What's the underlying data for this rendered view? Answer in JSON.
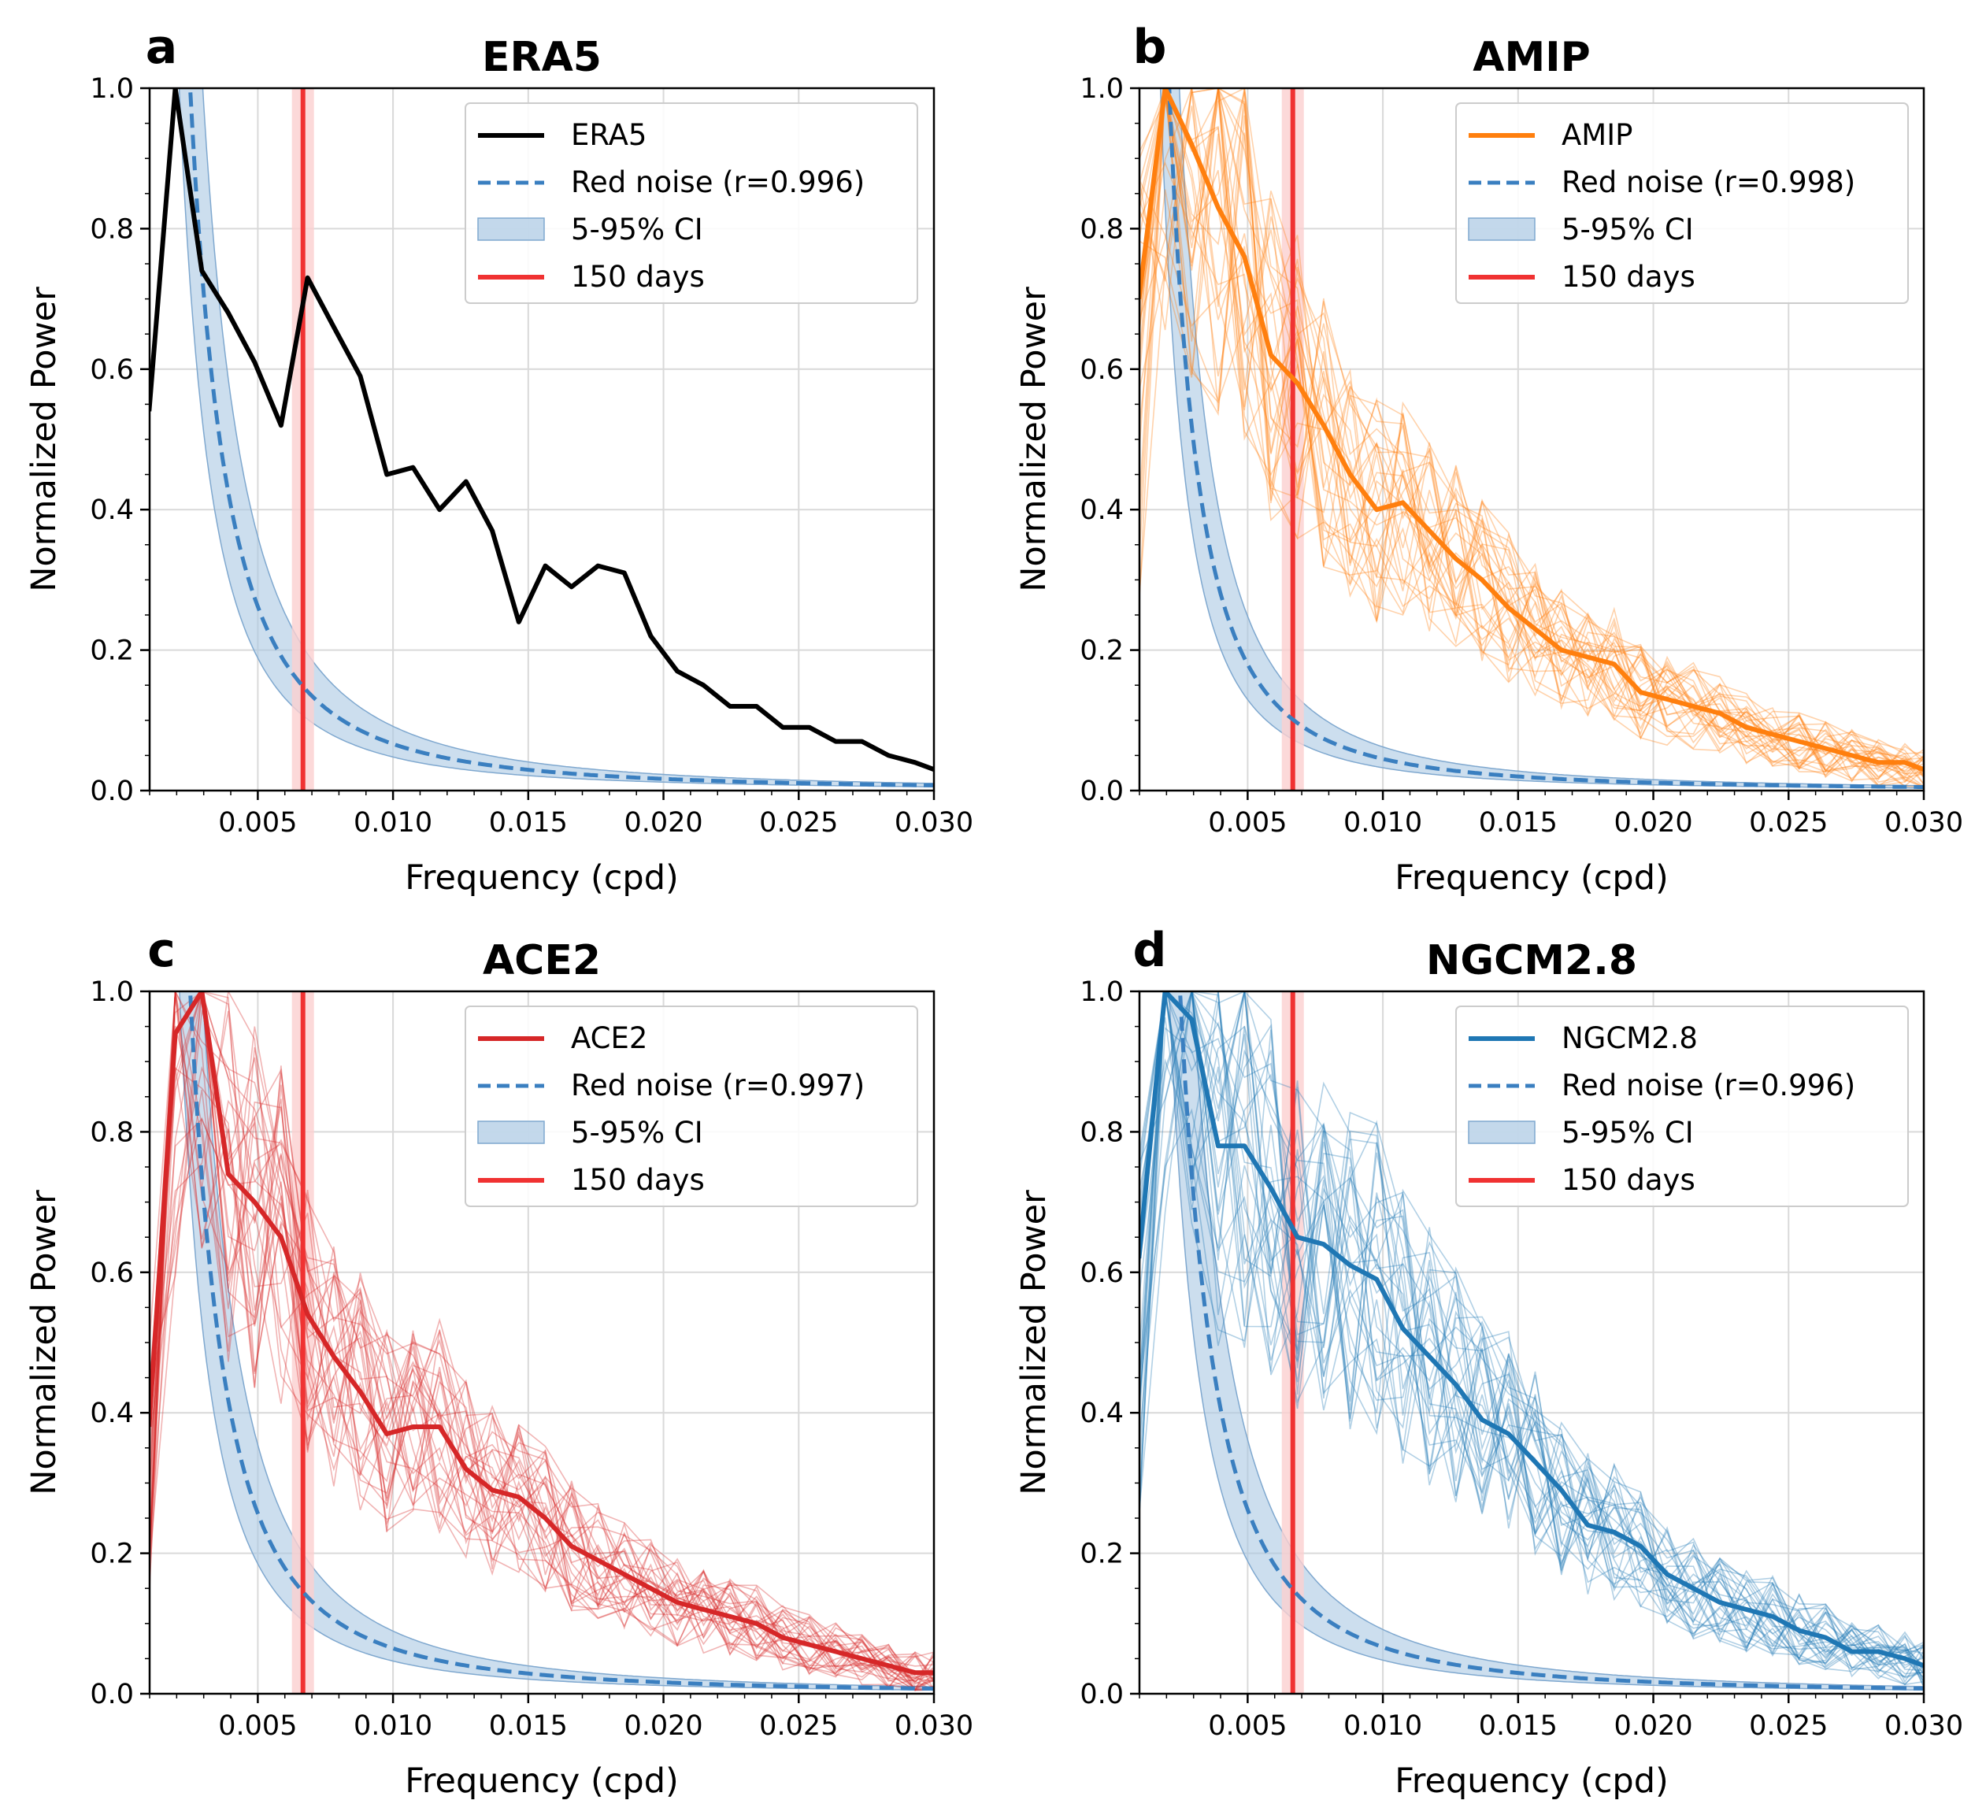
{
  "colors": {
    "era5": "#000000",
    "amip": "#ff7f0e",
    "ace2": "#d62728",
    "ngcm": "#1f77b4",
    "red_noise": "#3a7fc0",
    "ci_fill": "#aac8e2",
    "marker_150d": "#f03232",
    "marker_band": "#fbd0d0",
    "grid": "#d9d9d9"
  },
  "chart_data": [
    {
      "type": "line",
      "panel_letter": "a",
      "title": "ERA5",
      "xlabel": "Frequency (cpd)",
      "ylabel": "Normalized Power",
      "xlim": [
        0.001,
        0.03
      ],
      "ylim": [
        0.0,
        1.0
      ],
      "xticks": [
        "0.005",
        "0.010",
        "0.015",
        "0.020",
        "0.025",
        "0.030"
      ],
      "yticks": [
        "0.0",
        "0.2",
        "0.4",
        "0.6",
        "0.8",
        "1.0"
      ],
      "grid": true,
      "legend_position": "top-right",
      "marker_frequency": 0.00667,
      "red_noise_r": 0.996,
      "series": [
        {
          "name": "ERA5",
          "color": "#000000",
          "x": [
            0.00098,
            0.00195,
            0.00293,
            0.00391,
            0.00488,
            0.00586,
            0.00684,
            0.00781,
            0.00879,
            0.00977,
            0.01074,
            0.01172,
            0.0127,
            0.01367,
            0.01465,
            0.01563,
            0.0166,
            0.01758,
            0.01855,
            0.01953,
            0.02051,
            0.02148,
            0.02246,
            0.02344,
            0.02441,
            0.02539,
            0.02637,
            0.02734,
            0.02832,
            0.0293,
            0.03
          ],
          "values": [
            0.54,
            1.0,
            0.74,
            0.68,
            0.61,
            0.52,
            0.73,
            0.66,
            0.59,
            0.45,
            0.46,
            0.4,
            0.44,
            0.37,
            0.24,
            0.32,
            0.29,
            0.32,
            0.31,
            0.22,
            0.17,
            0.15,
            0.12,
            0.12,
            0.09,
            0.09,
            0.07,
            0.07,
            0.05,
            0.04,
            0.03
          ]
        }
      ],
      "legend": [
        "ERA5",
        "Red noise (r=0.996)",
        "5-95% CI",
        "150 days"
      ]
    },
    {
      "type": "line",
      "panel_letter": "b",
      "title": "AMIP",
      "xlabel": "Frequency (cpd)",
      "ylabel": "Normalized Power",
      "xlim": [
        0.001,
        0.03
      ],
      "ylim": [
        0.0,
        1.0
      ],
      "xticks": [
        "0.005",
        "0.010",
        "0.015",
        "0.020",
        "0.025",
        "0.030"
      ],
      "yticks": [
        "0.0",
        "0.2",
        "0.4",
        "0.6",
        "0.8",
        "1.0"
      ],
      "grid": true,
      "legend_position": "top-right",
      "marker_frequency": 0.00667,
      "red_noise_r": 0.998,
      "ensemble_members": 30,
      "series": [
        {
          "name": "AMIP",
          "color": "#ff7f0e",
          "x": [
            0.00098,
            0.00195,
            0.00293,
            0.00391,
            0.00488,
            0.00586,
            0.00684,
            0.00781,
            0.00879,
            0.00977,
            0.01074,
            0.01172,
            0.0127,
            0.01367,
            0.01465,
            0.01563,
            0.0166,
            0.01758,
            0.01855,
            0.01953,
            0.02051,
            0.02148,
            0.02246,
            0.02344,
            0.02441,
            0.02539,
            0.02637,
            0.02734,
            0.02832,
            0.0293,
            0.03
          ],
          "values": [
            0.7,
            1.0,
            0.92,
            0.83,
            0.76,
            0.62,
            0.58,
            0.52,
            0.45,
            0.4,
            0.41,
            0.37,
            0.33,
            0.3,
            0.26,
            0.23,
            0.2,
            0.19,
            0.18,
            0.14,
            0.13,
            0.12,
            0.11,
            0.09,
            0.08,
            0.07,
            0.06,
            0.05,
            0.04,
            0.04,
            0.03
          ]
        }
      ],
      "legend": [
        "AMIP",
        "Red noise (r=0.998)",
        "5-95% CI",
        "150 days"
      ]
    },
    {
      "type": "line",
      "panel_letter": "c",
      "title": "ACE2",
      "xlabel": "Frequency (cpd)",
      "ylabel": "Normalized Power",
      "xlim": [
        0.001,
        0.03
      ],
      "ylim": [
        0.0,
        1.0
      ],
      "xticks": [
        "0.005",
        "0.010",
        "0.015",
        "0.020",
        "0.025",
        "0.030"
      ],
      "yticks": [
        "0.0",
        "0.2",
        "0.4",
        "0.6",
        "0.8",
        "1.0"
      ],
      "grid": true,
      "legend_position": "top-right",
      "marker_frequency": 0.00667,
      "red_noise_r": 0.997,
      "ensemble_members": 30,
      "series": [
        {
          "name": "ACE2",
          "color": "#d62728",
          "x": [
            0.00098,
            0.00195,
            0.00293,
            0.00391,
            0.00488,
            0.00586,
            0.00684,
            0.00781,
            0.00879,
            0.00977,
            0.01074,
            0.01172,
            0.0127,
            0.01367,
            0.01465,
            0.01563,
            0.0166,
            0.01758,
            0.01855,
            0.01953,
            0.02051,
            0.02148,
            0.02246,
            0.02344,
            0.02441,
            0.02539,
            0.02637,
            0.02734,
            0.02832,
            0.0293,
            0.03
          ],
          "values": [
            0.38,
            0.94,
            1.0,
            0.74,
            0.7,
            0.65,
            0.54,
            0.48,
            0.43,
            0.37,
            0.38,
            0.38,
            0.32,
            0.29,
            0.28,
            0.25,
            0.21,
            0.19,
            0.17,
            0.15,
            0.13,
            0.12,
            0.11,
            0.1,
            0.08,
            0.07,
            0.06,
            0.05,
            0.04,
            0.03,
            0.03
          ]
        }
      ],
      "legend": [
        "ACE2",
        "Red noise (r=0.997)",
        "5-95% CI",
        "150 days"
      ]
    },
    {
      "type": "line",
      "panel_letter": "d",
      "title": "NGCM2.8",
      "xlabel": "Frequency (cpd)",
      "ylabel": "Normalized Power",
      "xlim": [
        0.001,
        0.03
      ],
      "ylim": [
        0.0,
        1.0
      ],
      "xticks": [
        "0.005",
        "0.010",
        "0.015",
        "0.020",
        "0.025",
        "0.030"
      ],
      "yticks": [
        "0.0",
        "0.2",
        "0.4",
        "0.6",
        "0.8",
        "1.0"
      ],
      "grid": true,
      "legend_position": "top-right",
      "marker_frequency": 0.00667,
      "red_noise_r": 0.996,
      "ensemble_members": 30,
      "series": [
        {
          "name": "NGCM2.8",
          "color": "#1f77b4",
          "x": [
            0.00098,
            0.00195,
            0.00293,
            0.00391,
            0.00488,
            0.00586,
            0.00684,
            0.00781,
            0.00879,
            0.00977,
            0.01074,
            0.01172,
            0.0127,
            0.01367,
            0.01465,
            0.01563,
            0.0166,
            0.01758,
            0.01855,
            0.01953,
            0.02051,
            0.02148,
            0.02246,
            0.02344,
            0.02441,
            0.02539,
            0.02637,
            0.02734,
            0.02832,
            0.0293,
            0.03
          ],
          "values": [
            0.62,
            1.0,
            0.96,
            0.78,
            0.78,
            0.72,
            0.65,
            0.64,
            0.61,
            0.59,
            0.52,
            0.48,
            0.44,
            0.39,
            0.37,
            0.33,
            0.29,
            0.24,
            0.23,
            0.21,
            0.17,
            0.15,
            0.13,
            0.12,
            0.11,
            0.09,
            0.08,
            0.06,
            0.06,
            0.05,
            0.04
          ]
        }
      ],
      "legend": [
        "NGCM2.8",
        "Red noise (r=0.996)",
        "5-95% CI",
        "150 days"
      ]
    }
  ]
}
